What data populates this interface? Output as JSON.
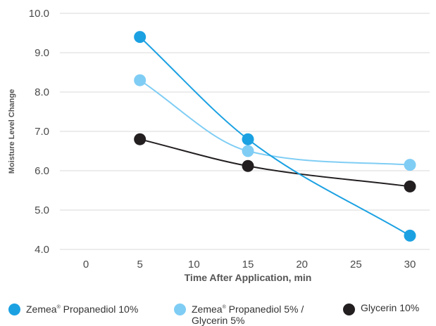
{
  "chart_data": {
    "type": "line",
    "x": [
      5,
      15,
      30
    ],
    "xticks": [
      "0",
      "5",
      "10",
      "15",
      "20",
      "25",
      "30"
    ],
    "xlim": [
      0,
      30
    ],
    "yticks": [
      "4.0",
      "5.0",
      "6.0",
      "7.0",
      "8.0",
      "9.0",
      "10.0"
    ],
    "ylim": [
      4.0,
      10.0
    ],
    "xlabel": "Time After Application, min",
    "ylabel": "Moisture Level Change",
    "grid": "horizontal",
    "legend": "bottom",
    "series": [
      {
        "name_main": "Zemea",
        "name_sup": "®",
        "name_rest": " Propanediol 10%",
        "color": "#1ba1e2",
        "values": [
          9.4,
          6.8,
          4.35
        ]
      },
      {
        "name_main": "Zemea",
        "name_sup": "®",
        "name_rest": " Propanediol 5% /",
        "name_line2": "Glycerin 5%",
        "color": "#7fcdf4",
        "values": [
          8.3,
          6.5,
          6.15
        ]
      },
      {
        "name_main": "Glycerin 10%",
        "name_sup": "",
        "name_rest": "",
        "color": "#231f20",
        "values": [
          6.8,
          6.12,
          5.6
        ]
      }
    ]
  }
}
